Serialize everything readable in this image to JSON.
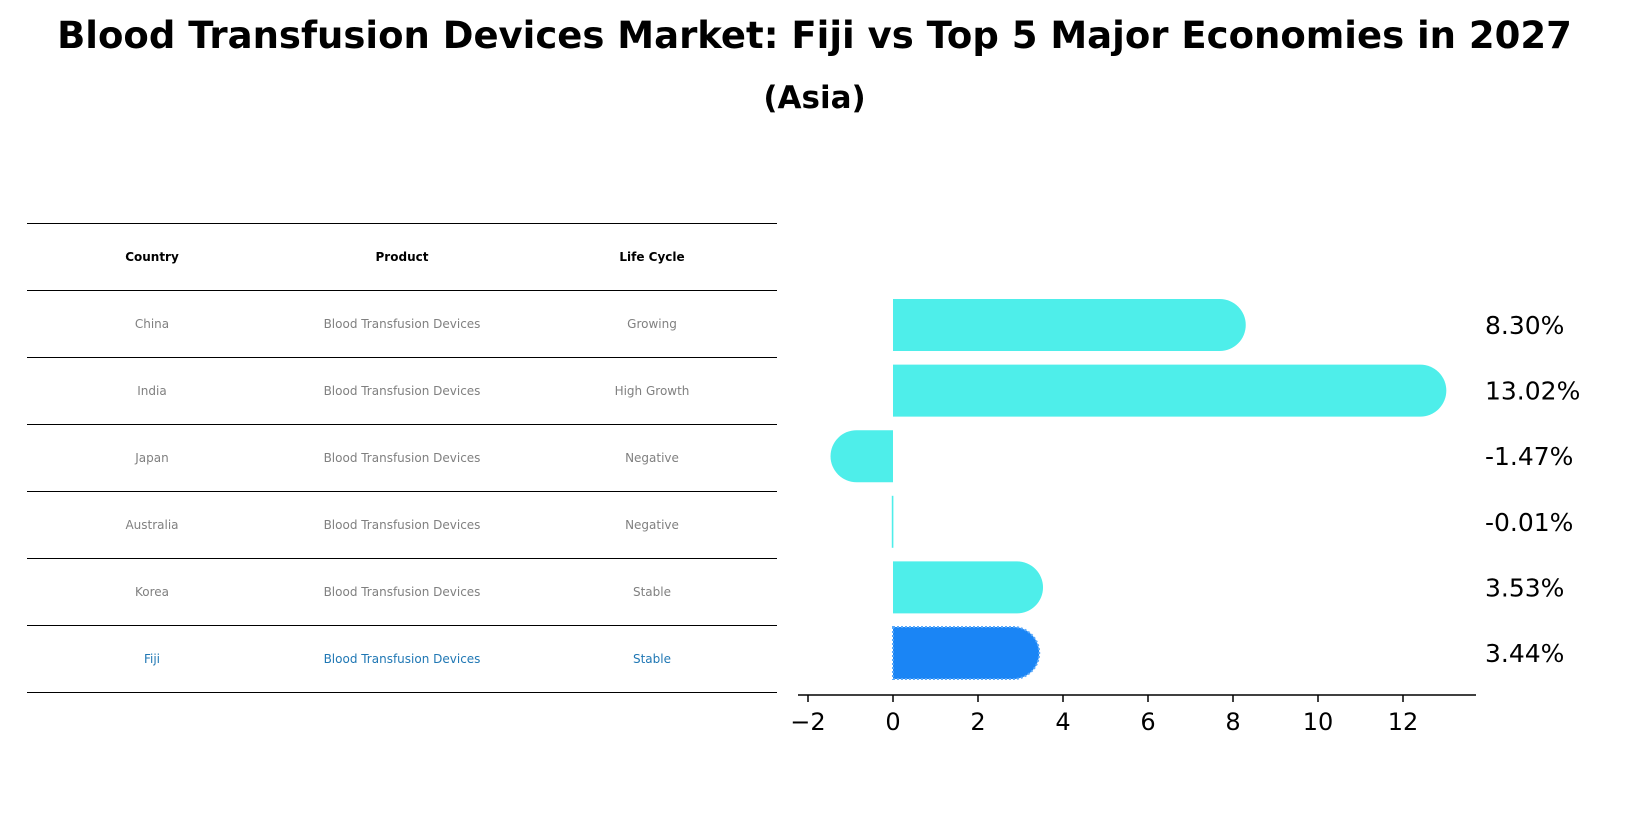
{
  "title": "Blood Transfusion Devices Market: Fiji vs Top 5 Major Economies in 2027",
  "subtitle": "(Asia)",
  "table": {
    "headers": [
      "Country",
      "Product",
      "Life Cycle"
    ],
    "rows": [
      [
        "China",
        "Blood Transfusion Devices",
        "Growing"
      ],
      [
        "India",
        "Blood Transfusion Devices",
        "High Growth"
      ],
      [
        "Japan",
        "Blood Transfusion Devices",
        "Negative"
      ],
      [
        "Australia",
        "Blood Transfusion Devices",
        "Negative"
      ],
      [
        "Korea",
        "Blood Transfusion Devices",
        "Stable"
      ],
      [
        "Fiji",
        "Blood Transfusion Devices",
        "Stable"
      ]
    ],
    "highlight_row": 5,
    "highlight_color": "#1f77b4"
  },
  "chart_data": {
    "type": "bar",
    "orientation": "horizontal",
    "categories": [
      "China",
      "India",
      "Japan",
      "Australia",
      "Korea",
      "Fiji"
    ],
    "values": [
      8.3,
      13.02,
      -1.47,
      -0.01,
      3.53,
      3.44
    ],
    "value_labels": [
      "8.30%",
      "13.02%",
      "-1.47%",
      "-0.01%",
      "3.53%",
      "3.44%"
    ],
    "xlim": [
      -2.2,
      13.9
    ],
    "xticks": [
      -2,
      0,
      2,
      4,
      6,
      8,
      10,
      12
    ],
    "xtick_labels": [
      "−2",
      "0",
      "2",
      "4",
      "6",
      "8",
      "10",
      "12"
    ],
    "grid": false,
    "colors": {
      "bar": "#4eeeea",
      "highlight_bar": "#1a85f5",
      "axis": "#000000"
    },
    "highlight_index": 5
  }
}
